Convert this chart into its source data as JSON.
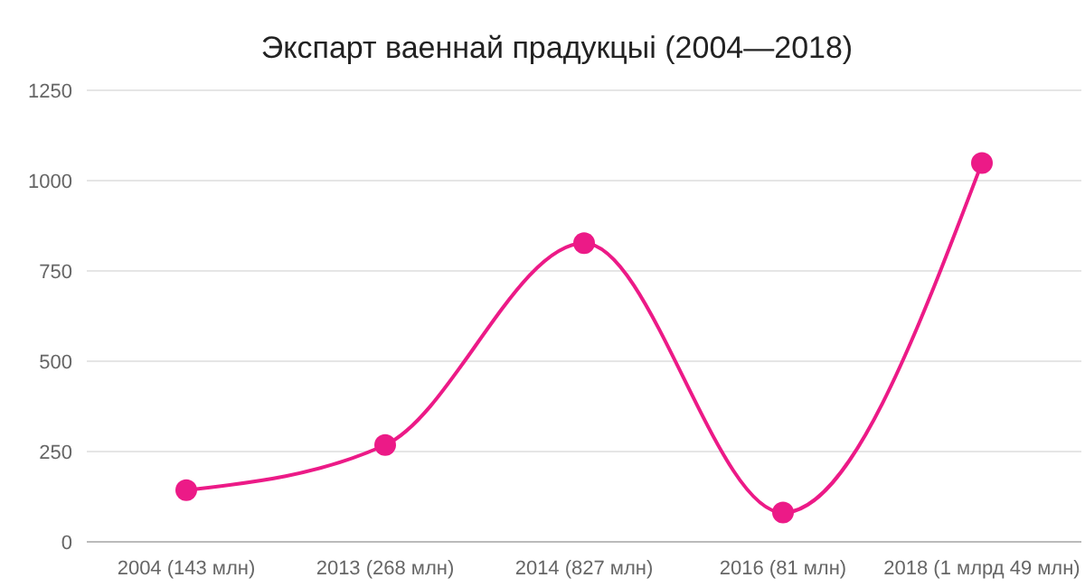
{
  "chart_data": {
    "type": "line",
    "title": "Экспарт ваеннай прадукцыі (2004—2018)",
    "categories": [
      "2004 (143 млн)",
      "2013 (268 млн)",
      "2014 (827 млн)",
      "2016 (81 млн)",
      "2018 (1 млрд 49 млн)"
    ],
    "series": [
      {
        "color": "#ec1a87",
        "values": [
          143,
          268,
          827,
          81,
          1049
        ]
      }
    ],
    "ylim": [
      0,
      1250
    ],
    "yticks": [
      0,
      250,
      500,
      750,
      1000,
      1250
    ],
    "grid": "y",
    "marker": "circle",
    "line_style": "solid"
  }
}
